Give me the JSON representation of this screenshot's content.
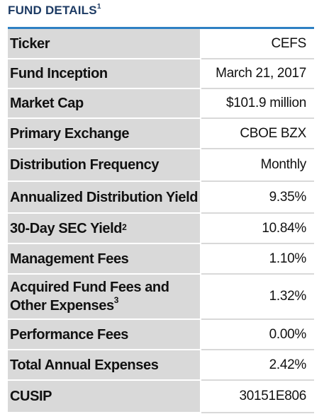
{
  "title": {
    "text": "FUND DETAILS",
    "sup": "1"
  },
  "colors": {
    "title": "#1d3b64",
    "accent_rule": "#2e80c3",
    "label_bg": "#d9d9d9"
  },
  "rows": [
    {
      "label": "Ticker",
      "value": "CEFS"
    },
    {
      "label": "Fund Inception",
      "value": "March 21, 2017"
    },
    {
      "label": "Market Cap",
      "value": "$101.9 million"
    },
    {
      "label": "Primary Exchange",
      "value": "CBOE BZX"
    },
    {
      "label": "Distribution Frequency",
      "value": "Monthly"
    },
    {
      "label": "Annualized Distribution Yield",
      "value": "9.35%"
    },
    {
      "label": "30-Day SEC Yield",
      "sup": "2",
      "value": "10.84%"
    },
    {
      "label": "Management Fees",
      "value": "1.10%"
    },
    {
      "label_line1": "Acquired Fund Fees and",
      "label_line2": "Other Expenses",
      "sup": "3",
      "value": "1.32%"
    },
    {
      "label": "Performance Fees",
      "value": "0.00%"
    },
    {
      "label": "Total Annual Expenses",
      "value": "2.42%"
    },
    {
      "label": "CUSIP",
      "value": "30151E806"
    }
  ]
}
